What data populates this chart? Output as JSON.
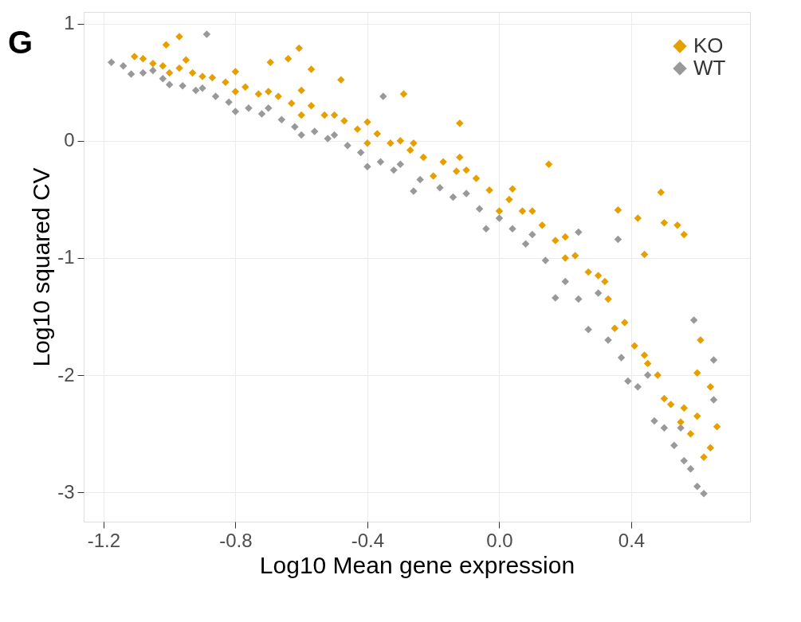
{
  "chart_data": {
    "type": "scatter",
    "title": "G",
    "xlabel": "Log10 Mean gene expression",
    "ylabel": "Log10 squared CV",
    "xlim": [
      -1.26,
      0.76
    ],
    "xticks": [
      {
        "value": -1.2,
        "label": "-1.2"
      },
      {
        "value": -0.8,
        "label": "-0.8"
      },
      {
        "value": -0.4,
        "label": "-0.4"
      },
      {
        "value": 0.0,
        "label": "0.0"
      },
      {
        "value": 0.4,
        "label": "0.4"
      }
    ],
    "ylim": [
      -3.25,
      1.1
    ],
    "yticks": [
      1,
      0,
      -1,
      -2,
      -3
    ],
    "grid": true,
    "legend": "top right",
    "marker": "diamond",
    "series": [
      {
        "name": "KO",
        "color": "#e69f00",
        "x": [
          -1.106,
          -0.95,
          -0.8,
          -0.6,
          -0.4,
          -0.26,
          -0.12,
          0.04,
          0.2,
          0.32,
          0.44,
          0.56,
          0.64,
          -1.05,
          -0.9,
          -0.7,
          -0.5,
          -0.3,
          -0.1,
          0.1,
          0.3,
          0.45,
          0.55,
          0.62,
          -1.0,
          -0.8,
          -0.6,
          -0.4,
          -0.2,
          0.0,
          0.2,
          0.35,
          0.5,
          -0.97,
          -1.01,
          -0.607,
          -0.694,
          -0.64,
          -0.48,
          -0.29,
          -0.57,
          -0.12,
          0.15,
          0.49,
          0.5,
          0.54,
          0.56,
          0.42,
          0.36,
          0.44,
          0.61,
          0.6,
          0.66,
          0.64,
          -1.08,
          -1.02,
          -0.97,
          -0.93,
          -0.87,
          -0.83,
          -0.77,
          -0.73,
          -0.67,
          -0.63,
          -0.57,
          -0.53,
          -0.47,
          -0.43,
          -0.37,
          -0.33,
          -0.27,
          -0.23,
          -0.17,
          -0.13,
          -0.07,
          -0.03,
          0.03,
          0.07,
          0.13,
          0.17,
          0.23,
          0.27,
          0.33,
          0.38,
          0.41,
          0.48,
          0.52,
          0.58,
          0.6
        ],
        "values": [
          0.72,
          0.69,
          0.59,
          0.43,
          0.16,
          -0.02,
          -0.14,
          -0.41,
          -0.82,
          -1.2,
          -1.83,
          -2.28,
          -2.62,
          0.66,
          0.55,
          0.42,
          0.22,
          0.0,
          -0.25,
          -0.6,
          -1.15,
          -1.9,
          -2.4,
          -2.7,
          0.58,
          0.42,
          0.22,
          -0.02,
          -0.3,
          -0.6,
          -1.0,
          -1.6,
          -2.2,
          0.89,
          0.82,
          0.79,
          0.67,
          0.7,
          0.52,
          0.4,
          0.61,
          0.15,
          -0.2,
          -0.44,
          -0.7,
          -0.72,
          -0.8,
          -0.66,
          -0.59,
          -0.97,
          -1.7,
          -1.98,
          -2.44,
          -2.1,
          0.7,
          0.64,
          0.62,
          0.58,
          0.54,
          0.5,
          0.46,
          0.4,
          0.38,
          0.32,
          0.3,
          0.22,
          0.17,
          0.1,
          0.06,
          -0.02,
          -0.08,
          -0.14,
          -0.18,
          -0.26,
          -0.32,
          -0.42,
          -0.5,
          -0.6,
          -0.72,
          -0.85,
          -0.98,
          -1.12,
          -1.35,
          -1.55,
          -1.75,
          -2.0,
          -2.25,
          -2.5,
          -2.35
        ]
      },
      {
        "name": "WT",
        "color": "#999999",
        "x": [
          -1.176,
          -1.116,
          -1.0,
          -0.8,
          -0.6,
          -0.4,
          -0.26,
          -0.04,
          0.17,
          0.27,
          0.39,
          0.47,
          0.56,
          0.62,
          -1.05,
          -0.9,
          -0.7,
          -0.5,
          -0.3,
          -0.1,
          0.1,
          0.3,
          0.45,
          0.55,
          -0.887,
          -0.352,
          0.36,
          0.59,
          0.65,
          0.65,
          0.24,
          -1.14,
          -1.08,
          -1.02,
          -0.96,
          -0.92,
          -0.86,
          -0.82,
          -0.76,
          -0.72,
          -0.66,
          -0.62,
          -0.56,
          -0.52,
          -0.46,
          -0.42,
          -0.36,
          -0.32,
          -0.24,
          -0.18,
          -0.14,
          -0.06,
          0.0,
          0.04,
          0.08,
          0.14,
          0.2,
          0.24,
          0.33,
          0.37,
          0.42,
          0.5,
          0.53,
          0.58,
          0.6
        ],
        "values": [
          0.67,
          0.57,
          0.48,
          0.25,
          0.05,
          -0.22,
          -0.43,
          -0.75,
          -1.34,
          -1.61,
          -2.05,
          -2.39,
          -2.73,
          -3.01,
          0.6,
          0.45,
          0.28,
          0.05,
          -0.2,
          -0.45,
          -0.8,
          -1.3,
          -2.0,
          -2.45,
          0.91,
          0.38,
          -0.84,
          -1.53,
          -1.87,
          -2.21,
          -0.78,
          0.64,
          0.58,
          0.53,
          0.47,
          0.43,
          0.38,
          0.33,
          0.28,
          0.23,
          0.18,
          0.12,
          0.08,
          0.02,
          -0.04,
          -0.1,
          -0.18,
          -0.25,
          -0.33,
          -0.4,
          -0.48,
          -0.58,
          -0.66,
          -0.75,
          -0.88,
          -1.02,
          -1.2,
          -1.35,
          -1.7,
          -1.85,
          -2.1,
          -2.45,
          -2.6,
          -2.8,
          -2.95
        ]
      }
    ]
  }
}
